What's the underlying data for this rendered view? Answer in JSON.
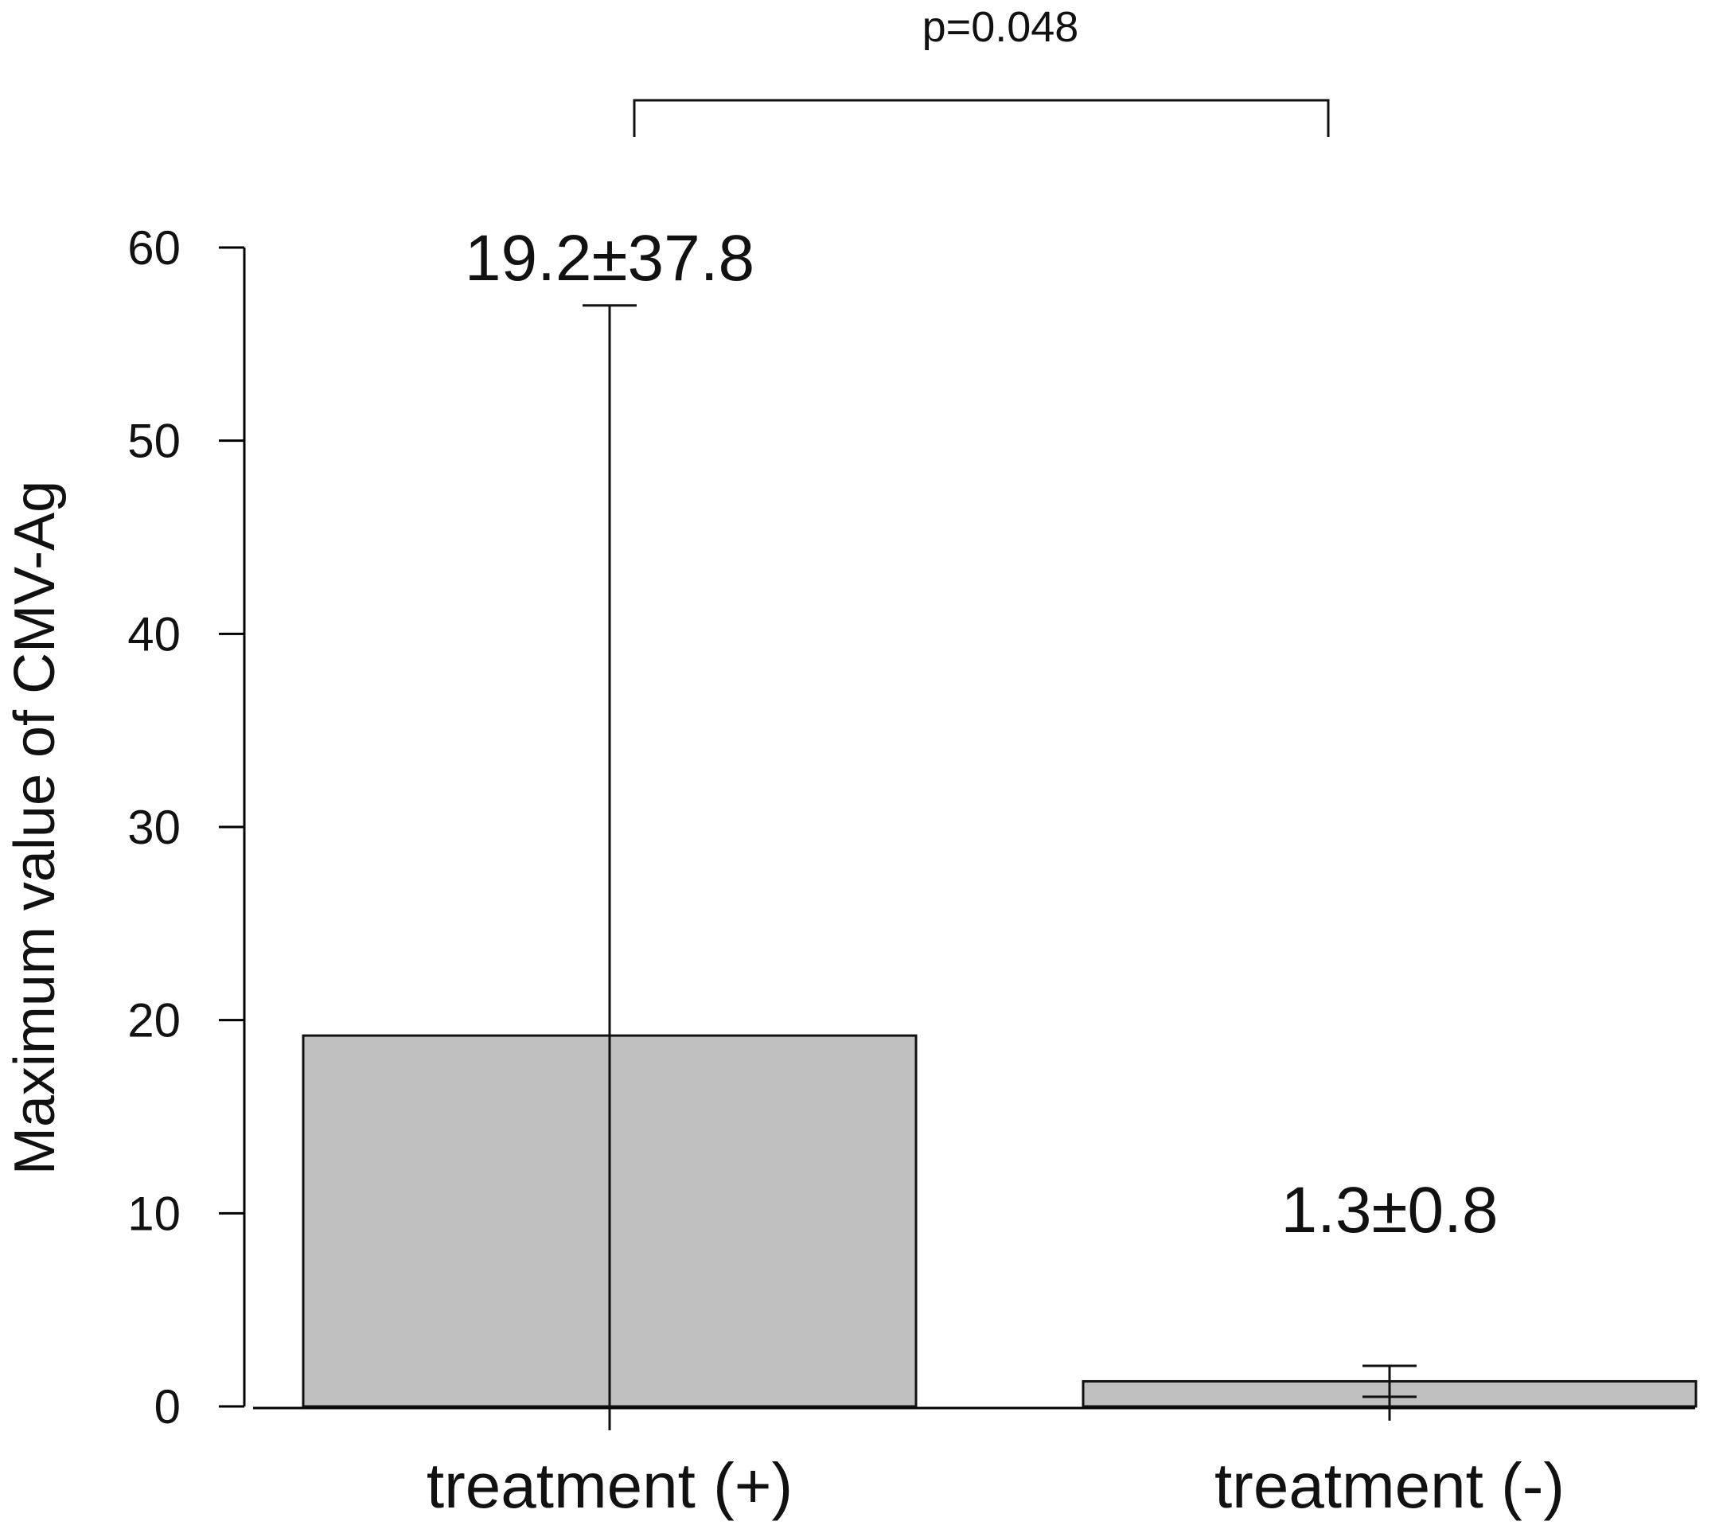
{
  "chart_data": {
    "type": "bar",
    "categories": [
      "treatment (+)",
      "treatment (-)"
    ],
    "values": [
      19.2,
      1.3
    ],
    "error_sd": [
      37.8,
      0.8
    ],
    "data_labels": [
      "19.2±37.8",
      "1.3±0.8"
    ],
    "title": "",
    "xlabel": "",
    "ylabel": "Maximum value of CMV-Ag",
    "ylim": [
      0,
      60
    ],
    "yticks": [
      0,
      10,
      20,
      30,
      40,
      50,
      60
    ],
    "ytick_labels": [
      "0",
      "10",
      "20",
      "30",
      "40",
      "50",
      "60"
    ],
    "grid": false,
    "legend": "none",
    "bar_color": "#c0c0c0",
    "annotations": [
      {
        "type": "significance",
        "between": [
          "treatment (+)",
          "treatment (-)"
        ],
        "label": "p=0.048"
      }
    ]
  }
}
